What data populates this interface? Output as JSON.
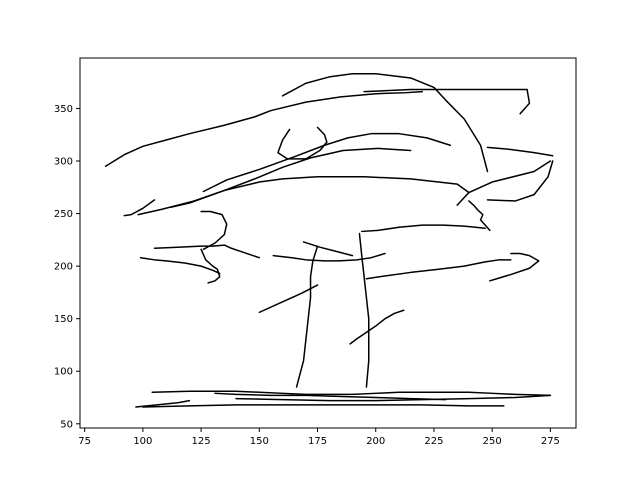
{
  "chart_data": {
    "type": "line",
    "title": "",
    "xlabel": "",
    "ylabel": "",
    "xlim": [
      73,
      286
    ],
    "ylim": [
      46,
      398
    ],
    "xticks": [
      75,
      100,
      125,
      150,
      175,
      200,
      225,
      250,
      275
    ],
    "yticks": [
      50,
      100,
      150,
      200,
      250,
      300,
      350
    ],
    "grid": false,
    "legend": "none",
    "line_color": "#000000",
    "series": [
      {
        "x": [
          84,
          92,
          100,
          110,
          120,
          135,
          148,
          155,
          170,
          185,
          200,
          213,
          220
        ],
        "y": [
          295,
          306,
          314,
          320,
          326,
          334,
          342,
          348,
          356,
          361,
          364,
          365,
          366
        ]
      },
      {
        "x": [
          160,
          170,
          180,
          190,
          200,
          215,
          225,
          230,
          238,
          245,
          248
        ],
        "y": [
          362,
          374,
          380,
          383,
          383,
          379,
          370,
          358,
          340,
          315,
          290
        ]
      },
      {
        "x": [
          195,
          215,
          240,
          265,
          266,
          262
        ],
        "y": [
          366,
          368,
          368,
          368,
          355,
          345
        ]
      },
      {
        "x": [
          248,
          260,
          268,
          274,
          276
        ],
        "y": [
          263,
          262,
          268,
          285,
          300
        ]
      },
      {
        "x": [
          275,
          268,
          250,
          240,
          235
        ],
        "y": [
          300,
          290,
          280,
          270,
          258
        ]
      },
      {
        "x": [
          112,
          120,
          135,
          150,
          160,
          175,
          195,
          215,
          235,
          240
        ],
        "y": [
          256,
          260,
          272,
          280,
          283,
          285,
          285,
          283,
          278,
          270
        ]
      },
      {
        "x": [
          105,
          100,
          95,
          92
        ],
        "y": [
          263,
          255,
          249,
          248
        ]
      },
      {
        "x": [
          163,
          160,
          158,
          162,
          170,
          176,
          179,
          178,
          175
        ],
        "y": [
          330,
          320,
          308,
          302,
          302,
          310,
          318,
          325,
          332
        ]
      },
      {
        "x": [
          126,
          136,
          150,
          165,
          178,
          188,
          198,
          210,
          222,
          232
        ],
        "y": [
          271,
          282,
          292,
          304,
          315,
          322,
          326,
          326,
          322,
          315
        ]
      },
      {
        "x": [
          98,
          108,
          122,
          135,
          148,
          160,
          172,
          186,
          201,
          215
        ],
        "y": [
          249,
          254,
          262,
          272,
          283,
          294,
          303,
          310,
          312,
          310
        ]
      },
      {
        "x": [
          248,
          258,
          268,
          276
        ],
        "y": [
          313,
          311,
          308,
          305
        ]
      },
      {
        "x": [
          126,
          131,
          135,
          136,
          134,
          129,
          125
        ],
        "y": [
          216,
          222,
          230,
          240,
          249,
          252,
          252
        ]
      },
      {
        "x": [
          125,
          127,
          130,
          132,
          133,
          131,
          128
        ],
        "y": [
          216,
          206,
          200,
          197,
          190,
          186,
          184
        ]
      },
      {
        "x": [
          99,
          105,
          110,
          118,
          125,
          130,
          133
        ],
        "y": [
          208,
          206,
          205,
          203,
          200,
          196,
          193
        ]
      },
      {
        "x": [
          105,
          115,
          125,
          130,
          135,
          138,
          142,
          146,
          150
        ],
        "y": [
          217,
          218,
          219,
          219,
          220,
          217,
          214,
          211,
          208
        ]
      },
      {
        "x": [
          175,
          173,
          172,
          172,
          171,
          170,
          169,
          166
        ],
        "y": [
          219,
          205,
          190,
          170,
          150,
          130,
          110,
          85
        ]
      },
      {
        "x": [
          193,
          194,
          195,
          196,
          197,
          197,
          197,
          196
        ],
        "y": [
          231,
          210,
          190,
          170,
          150,
          130,
          110,
          85
        ]
      },
      {
        "x": [
          194,
          201,
          210,
          220,
          229,
          238,
          247
        ],
        "y": [
          233,
          234,
          237,
          239,
          239,
          238,
          236
        ]
      },
      {
        "x": [
          196,
          205,
          215,
          227,
          238,
          247,
          253,
          258
        ],
        "y": [
          188,
          191,
          194,
          197,
          200,
          204,
          206,
          206
        ]
      },
      {
        "x": [
          189,
          192,
          196,
          200,
          204,
          208,
          212
        ],
        "y": [
          126,
          131,
          137,
          143,
          150,
          155,
          158
        ]
      },
      {
        "x": [
          104,
          120,
          140,
          150,
          160,
          170,
          180,
          190,
          200,
          210,
          220,
          230,
          240,
          250,
          260,
          275
        ],
        "y": [
          80,
          81,
          81,
          80,
          79,
          78,
          78,
          78,
          79,
          80,
          80,
          80,
          80,
          79,
          78,
          77
        ]
      },
      {
        "x": [
          97,
          106,
          115,
          120
        ],
        "y": [
          66,
          68,
          70,
          72
        ]
      },
      {
        "x": [
          100,
          120,
          140,
          160,
          180,
          200,
          220,
          240,
          255
        ],
        "y": [
          66,
          67,
          68,
          68,
          68,
          68,
          68,
          67,
          67
        ]
      },
      {
        "x": [
          140,
          160,
          180,
          200,
          220,
          240,
          260,
          275
        ],
        "y": [
          74,
          73,
          72,
          72,
          73,
          74,
          75,
          77
        ]
      },
      {
        "x": [
          131,
          140,
          155,
          170,
          185,
          200,
          215,
          230
        ],
        "y": [
          79,
          78,
          77,
          77,
          76,
          75,
          74,
          73
        ]
      },
      {
        "x": [
          240,
          242,
          244,
          246,
          245,
          247,
          249
        ],
        "y": [
          262,
          258,
          253,
          249,
          244,
          239,
          234
        ]
      },
      {
        "x": [
          249,
          252,
          258,
          266,
          270,
          266,
          262,
          258
        ],
        "y": [
          186,
          188,
          192,
          198,
          205,
          210,
          212,
          212
        ]
      },
      {
        "x": [
          156,
          164,
          170,
          178,
          184,
          192,
          198,
          204
        ],
        "y": [
          210,
          208,
          206,
          205,
          205,
          206,
          208,
          212
        ]
      },
      {
        "x": [
          150,
          160,
          168,
          175
        ],
        "y": [
          156,
          166,
          174,
          182
        ]
      },
      {
        "x": [
          169,
          176,
          183,
          190
        ],
        "y": [
          223,
          218,
          214,
          210
        ]
      }
    ]
  }
}
